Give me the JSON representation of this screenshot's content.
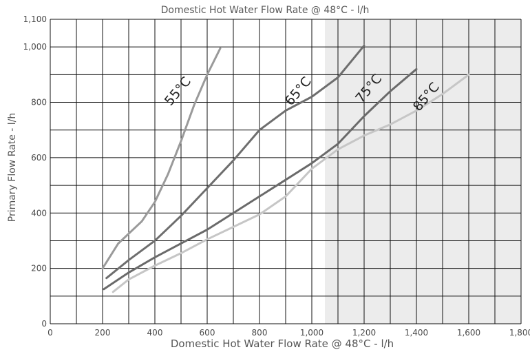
{
  "chart_data": {
    "type": "line",
    "title": "Domestic Hot Water Flow Rate @ 48°C - l/h",
    "xlabel": "Domestic Hot Water Flow Rate @ 48°C - l/h",
    "ylabel": "Primary Flow Rate - l/h",
    "xlim": [
      0,
      1800
    ],
    "ylim": [
      0,
      1100
    ],
    "x_ticks": [
      "0",
      "200",
      "400",
      "600",
      "800",
      "1,000",
      "1,200",
      "1,400",
      "1,600",
      "1,800"
    ],
    "y_ticks": [
      "0",
      "200",
      "400",
      "600",
      "800",
      "1,000",
      "1,100"
    ],
    "grid": true,
    "shaded_region_from_x": 1050,
    "series": [
      {
        "name": "55°C",
        "color": "#9a9a9a",
        "x": [
          200,
          260,
          350,
          400,
          450,
          500,
          550,
          600,
          650
        ],
        "y": [
          200,
          290,
          370,
          440,
          540,
          660,
          790,
          900,
          995
        ]
      },
      {
        "name": "65°C",
        "color": "#6e6e6e",
        "x": [
          215,
          300,
          400,
          500,
          600,
          700,
          800,
          900,
          1000,
          1100,
          1200
        ],
        "y": [
          165,
          230,
          300,
          390,
          490,
          590,
          700,
          770,
          820,
          890,
          1005
        ]
      },
      {
        "name": "75°C",
        "color": "#6a6a6a",
        "x": [
          205,
          300,
          400,
          500,
          600,
          700,
          800,
          900,
          1000,
          1100,
          1200,
          1300,
          1400
        ],
        "y": [
          125,
          185,
          240,
          290,
          340,
          400,
          460,
          520,
          580,
          650,
          750,
          840,
          920
        ]
      },
      {
        "name": "85°C",
        "color": "#c6c6c6",
        "x": [
          240,
          300,
          400,
          500,
          600,
          700,
          800,
          900,
          1000,
          1100,
          1200,
          1300,
          1400,
          1500,
          1600
        ],
        "y": [
          115,
          160,
          210,
          255,
          305,
          350,
          395,
          460,
          560,
          630,
          680,
          720,
          770,
          830,
          900
        ]
      }
    ],
    "label_positions": [
      {
        "text": "55°C",
        "x": 500,
        "y": 830
      },
      {
        "text": "65°C",
        "x": 960,
        "y": 830
      },
      {
        "text": "75°C",
        "x": 1230,
        "y": 840
      },
      {
        "text": "85°C",
        "x": 1450,
        "y": 810
      }
    ]
  }
}
